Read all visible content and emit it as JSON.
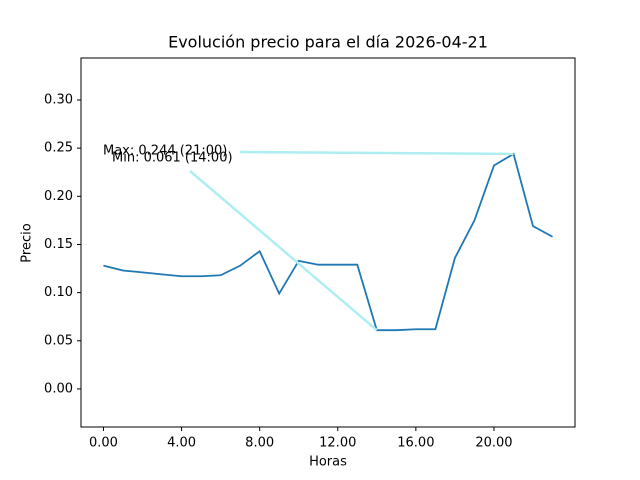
{
  "chart_data": {
    "type": "line",
    "title": "Evolución precio para el día 2026-04-21",
    "x_label": "Horas",
    "y_label": "Precio",
    "x": [
      0,
      1,
      2,
      3,
      4,
      5,
      6,
      7,
      8,
      9,
      10,
      11,
      12,
      13,
      14,
      15,
      16,
      17,
      18,
      19,
      20,
      21,
      22,
      23
    ],
    "series": [
      {
        "name": "Precio",
        "color": "#1f77b4",
        "values": [
          0.128,
          0.123,
          0.121,
          0.119,
          0.117,
          0.117,
          0.118,
          0.128,
          0.143,
          0.099,
          0.133,
          0.129,
          0.129,
          0.129,
          0.061,
          0.061,
          0.062,
          0.062,
          0.136,
          0.175,
          0.232,
          0.244,
          0.169,
          0.158
        ]
      }
    ],
    "xlim": [
      -1.15,
      24.15
    ],
    "ylim": [
      -0.0395,
      0.3436
    ],
    "xticks": [
      {
        "value": 0,
        "label": "0.00"
      },
      {
        "value": 4,
        "label": "4.00"
      },
      {
        "value": 8,
        "label": "8.00"
      },
      {
        "value": 12,
        "label": "12.00"
      },
      {
        "value": 16,
        "label": "16.00"
      },
      {
        "value": 20,
        "label": "20.00"
      }
    ],
    "yticks": [
      {
        "value": 0,
        "label": "0.00"
      },
      {
        "value": 0.05,
        "label": "0.05"
      },
      {
        "value": 0.1,
        "label": "0.10"
      },
      {
        "value": 0.15,
        "label": "0.15"
      },
      {
        "value": 0.2,
        "label": "0.20"
      },
      {
        "value": 0.25,
        "label": "0.25"
      },
      {
        "value": 0.3,
        "label": "0.30"
      }
    ],
    "annotations": [
      {
        "text": "Max: 0.244 (21:00)",
        "x": 21,
        "y": 0.244,
        "color": "#aeeef0"
      },
      {
        "text": "Min: 0.061 (14:00)",
        "x": 14,
        "y": 0.061,
        "color": "#aeeef0"
      }
    ]
  }
}
